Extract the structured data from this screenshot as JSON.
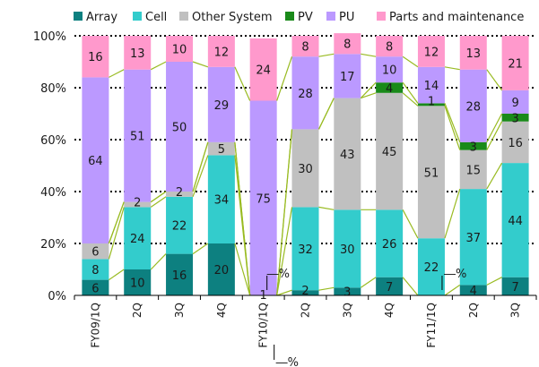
{
  "chart_data": {
    "type": "bar",
    "stacked": true,
    "percent": true,
    "title": "",
    "xlabel": "",
    "ylabel": "",
    "ylim": [
      0,
      100
    ],
    "grid": true,
    "legend_position": "top",
    "categories": [
      "FY09/1Q",
      "2Q",
      "3Q",
      "4Q",
      "FY10/1Q",
      "2Q",
      "3Q",
      "4Q",
      "FY11/1Q",
      "2Q",
      "3Q"
    ],
    "y_ticks": [
      "0%",
      "20%",
      "40%",
      "60%",
      "80%",
      "100%"
    ],
    "series": [
      {
        "name": "Array",
        "color": "#0d8080",
        "values": [
          6,
          10,
          16,
          20,
          0,
          2,
          3,
          7,
          0,
          4,
          7
        ],
        "labels": [
          "6",
          "10",
          "16",
          "20",
          "",
          "2",
          "3",
          "7",
          "",
          "4",
          "7"
        ]
      },
      {
        "name": "Cell",
        "color": "#33cccc",
        "values": [
          8,
          24,
          22,
          34,
          0,
          32,
          30,
          26,
          22,
          37,
          44
        ],
        "labels": [
          "8",
          "24",
          "22",
          "34",
          "",
          "32",
          "30",
          "26",
          "22",
          "37",
          "44"
        ]
      },
      {
        "name": "Other System",
        "color": "#c0c0c0",
        "values": [
          6,
          2,
          2,
          5,
          0,
          30,
          43,
          45,
          51,
          15,
          16
        ],
        "labels": [
          "6",
          "2",
          "2",
          "5",
          "",
          "30",
          "43",
          "45",
          "51",
          "15",
          "16"
        ]
      },
      {
        "name": "PV",
        "color": "#1a8a1a",
        "values": [
          0,
          0,
          0,
          0,
          0,
          0,
          0,
          4,
          1,
          3,
          3
        ],
        "labels": [
          "",
          "",
          "",
          "",
          "",
          "",
          "",
          "4",
          "1",
          "3",
          "3"
        ]
      },
      {
        "name": "PU",
        "color": "#bb99ff",
        "values": [
          64,
          51,
          50,
          29,
          75,
          28,
          17,
          10,
          14,
          28,
          9
        ],
        "labels": [
          "64",
          "51",
          "50",
          "29",
          "75",
          "28",
          "17",
          "10",
          "14",
          "28",
          "9"
        ]
      },
      {
        "name": "Parts and maintenance",
        "color": "#ff99cc",
        "values": [
          16,
          13,
          10,
          12,
          24,
          8,
          8,
          8,
          12,
          13,
          21
        ],
        "labels": [
          "16",
          "13",
          "10",
          "12",
          "24",
          "8",
          "8",
          "8",
          "12",
          "13",
          "21"
        ]
      }
    ],
    "annotations": [
      {
        "text": "1",
        "category_index": 4
      },
      {
        "text": "―%",
        "category_index": 4
      },
      {
        "text": "―%",
        "category_index": 4
      },
      {
        "text": "―%",
        "category_index": 8
      }
    ],
    "connector_color": "#99bb22"
  }
}
